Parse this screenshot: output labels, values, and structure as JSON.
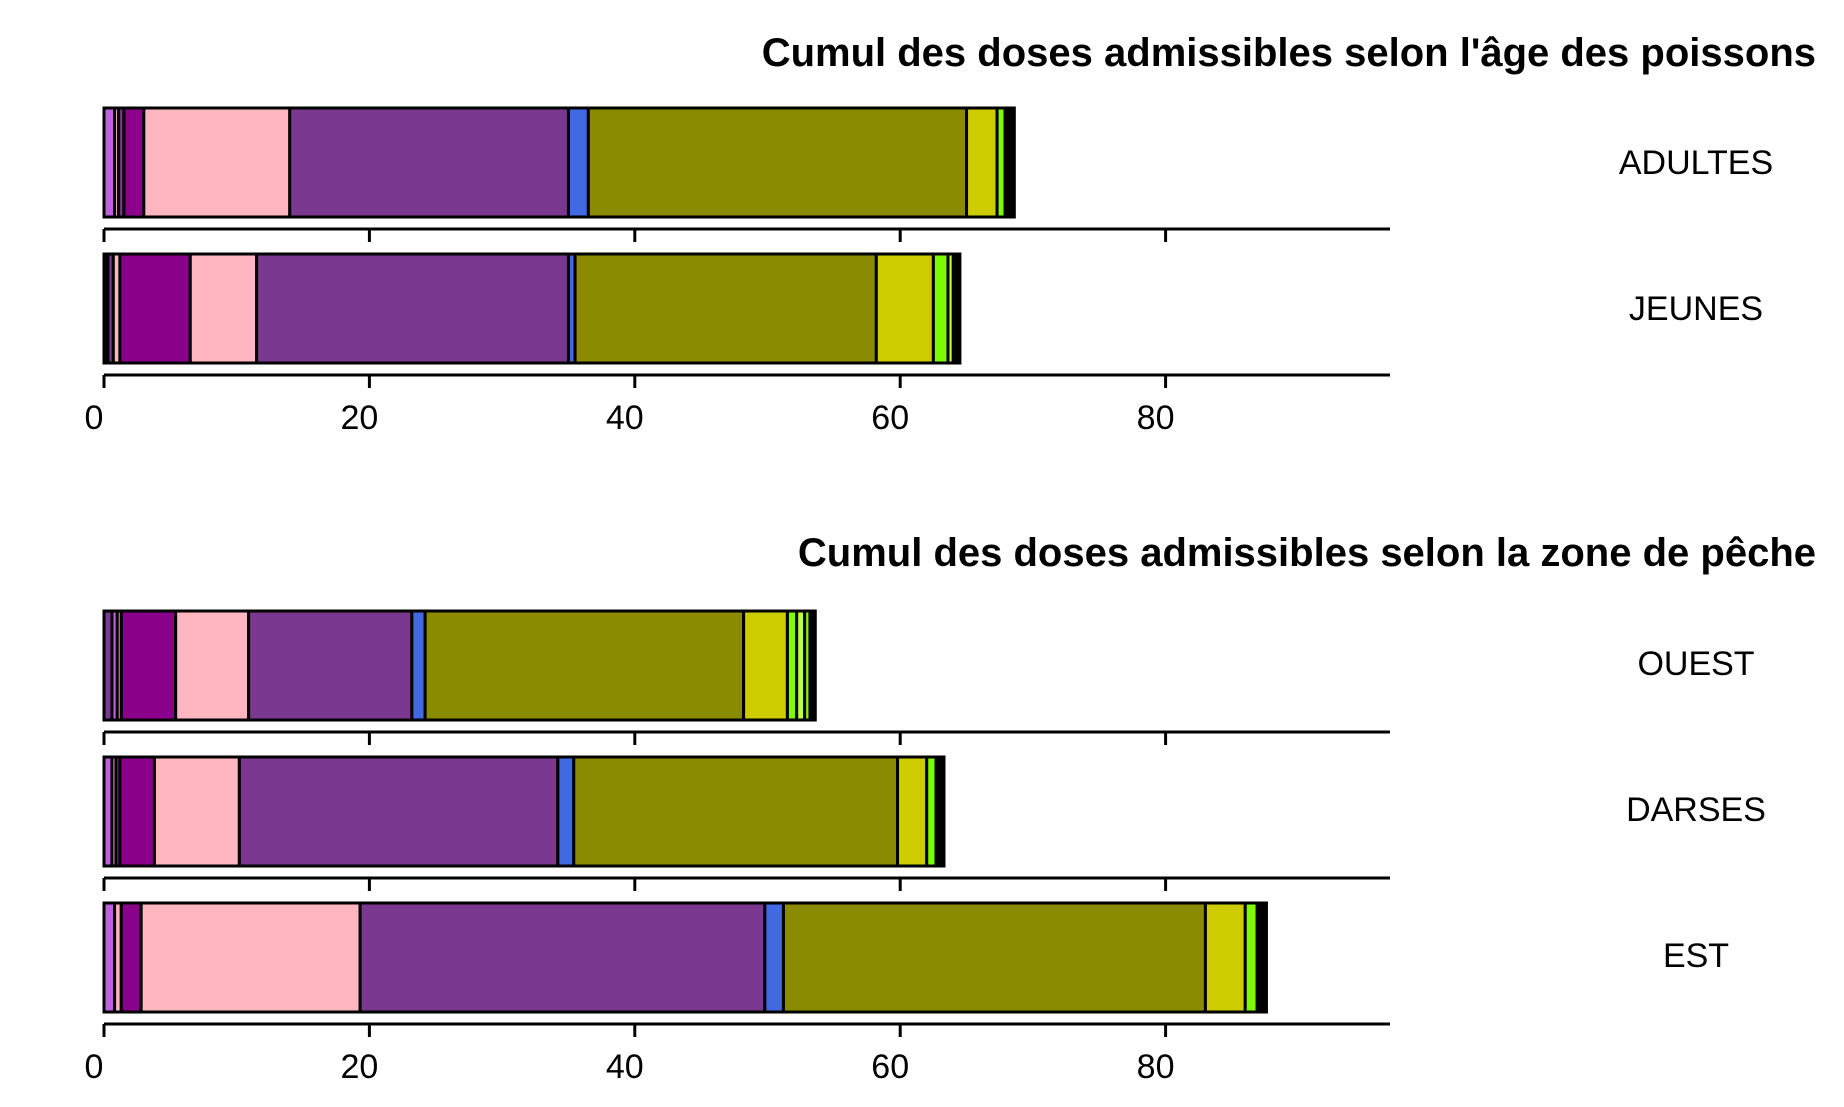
{
  "chart_data": [
    {
      "type": "bar",
      "orientation": "horizontal",
      "stacked": true,
      "title": "Cumul des doses admissibles selon l'âge des poissons",
      "xlim": [
        0,
        96
      ],
      "xticks": [
        "0",
        "20",
        "40",
        "60",
        "80"
      ],
      "categories": [
        "ADULTES",
        "JEUNES"
      ],
      "segments": [
        [
          {
            "value": 0.8,
            "color": "#c060e0"
          },
          {
            "value": 0.3,
            "color": "#ffb6c1"
          },
          {
            "value": 0.4,
            "color": "#7b3890"
          },
          {
            "value": 1.5,
            "color": "#8b008b"
          },
          {
            "value": 11.0,
            "color": "#ffb6c1"
          },
          {
            "value": 21.0,
            "color": "#7b3890"
          },
          {
            "value": 1.5,
            "color": "#4169e1"
          },
          {
            "value": 28.5,
            "color": "#8b8b00"
          },
          {
            "value": 2.3,
            "color": "#cccc00"
          },
          {
            "value": 0.6,
            "color": "#7cfc00"
          },
          {
            "value": 0.7,
            "color": "#000000"
          }
        ],
        [
          {
            "value": 0.3,
            "color": "#000000"
          },
          {
            "value": 0.4,
            "color": "#7b3890"
          },
          {
            "value": 0.5,
            "color": "#ffb6c1"
          },
          {
            "value": 5.3,
            "color": "#8b008b"
          },
          {
            "value": 5.0,
            "color": "#ffb6c1"
          },
          {
            "value": 23.5,
            "color": "#7b3890"
          },
          {
            "value": 0.5,
            "color": "#4169e1"
          },
          {
            "value": 22.7,
            "color": "#8b8b00"
          },
          {
            "value": 4.3,
            "color": "#cccc00"
          },
          {
            "value": 1.1,
            "color": "#7cfc00"
          },
          {
            "value": 0.4,
            "color": "#c0ff3e"
          },
          {
            "value": 0.5,
            "color": "#000000"
          }
        ]
      ]
    },
    {
      "type": "bar",
      "orientation": "horizontal",
      "stacked": true,
      "title": "Cumul des doses admissibles selon la zone de pêche",
      "xlim": [
        0,
        96
      ],
      "xticks": [
        "0",
        "20",
        "40",
        "60",
        "80"
      ],
      "categories": [
        "OUEST",
        "DARSES",
        "EST"
      ],
      "segments": [
        [
          {
            "value": 0.6,
            "color": "#7b3890"
          },
          {
            "value": 0.4,
            "color": "#c060e0"
          },
          {
            "value": 0.3,
            "color": "#ffb6c1"
          },
          {
            "value": 4.1,
            "color": "#8b008b"
          },
          {
            "value": 5.5,
            "color": "#ffb6c1"
          },
          {
            "value": 12.3,
            "color": "#7b3890"
          },
          {
            "value": 1.0,
            "color": "#4169e1"
          },
          {
            "value": 24.0,
            "color": "#8b8b00"
          },
          {
            "value": 3.3,
            "color": "#cccc00"
          },
          {
            "value": 0.7,
            "color": "#7cfc00"
          },
          {
            "value": 0.6,
            "color": "#c0ff3e"
          },
          {
            "value": 0.4,
            "color": "#7cfc00"
          },
          {
            "value": 0.4,
            "color": "#000000"
          }
        ],
        [
          {
            "value": 0.6,
            "color": "#c060e0"
          },
          {
            "value": 0.3,
            "color": "#ffb6c1"
          },
          {
            "value": 0.3,
            "color": "#7b3890"
          },
          {
            "value": 2.6,
            "color": "#8b008b"
          },
          {
            "value": 6.4,
            "color": "#ffb6c1"
          },
          {
            "value": 24.0,
            "color": "#7b3890"
          },
          {
            "value": 1.2,
            "color": "#4169e1"
          },
          {
            "value": 24.4,
            "color": "#8b8b00"
          },
          {
            "value": 2.2,
            "color": "#cccc00"
          },
          {
            "value": 0.7,
            "color": "#7cfc00"
          },
          {
            "value": 0.6,
            "color": "#000000"
          }
        ],
        [
          {
            "value": 0.8,
            "color": "#c060e0"
          },
          {
            "value": 0.5,
            "color": "#ffb6c1"
          },
          {
            "value": 1.5,
            "color": "#8b008b"
          },
          {
            "value": 16.5,
            "color": "#ffb6c1"
          },
          {
            "value": 30.5,
            "color": "#7b3890"
          },
          {
            "value": 1.4,
            "color": "#4169e1"
          },
          {
            "value": 31.8,
            "color": "#8b8b00"
          },
          {
            "value": 3.0,
            "color": "#cccc00"
          },
          {
            "value": 0.9,
            "color": "#7cfc00"
          },
          {
            "value": 0.7,
            "color": "#000000"
          }
        ]
      ]
    }
  ]
}
